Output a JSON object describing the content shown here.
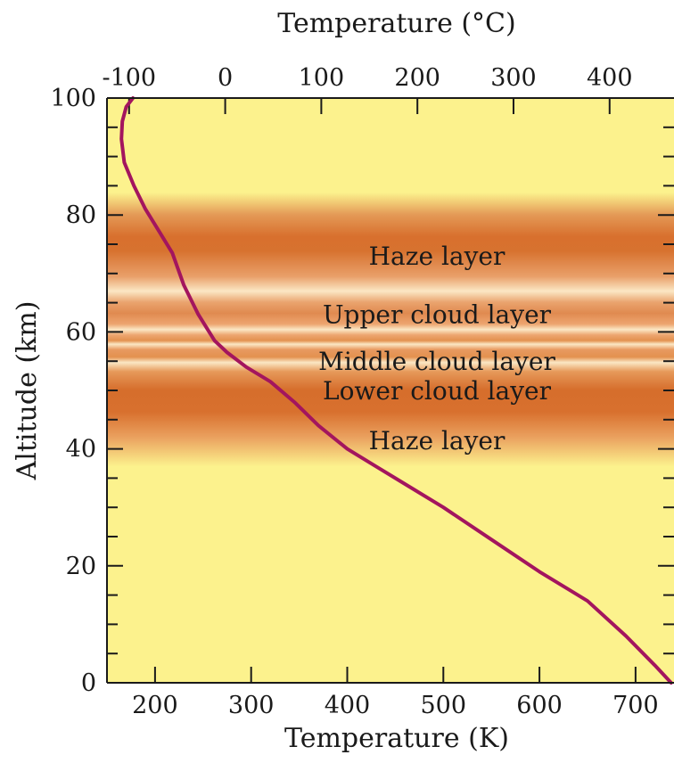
{
  "chart_data": {
    "type": "line",
    "title": "",
    "xlabel": "Temperature (K)",
    "x2label": "Temperature (°C)",
    "ylabel": "Altitude (km)",
    "xlim": [
      150,
      740
    ],
    "ylim": [
      0,
      100
    ],
    "x_ticks": [
      200,
      300,
      400,
      500,
      600,
      700
    ],
    "x2_ticks": [
      -100,
      0,
      100,
      200,
      300,
      400
    ],
    "y_ticks": [
      0,
      20,
      40,
      60,
      80,
      100
    ],
    "grid": false,
    "colors": {
      "line": "#a3155e",
      "background": "#fcf28d",
      "haze_band": "#d8702e",
      "cloud_band": "#e9a06a",
      "cloud_highlight": "#fbe7c4"
    },
    "series": [
      {
        "x": [
          737,
          720,
          690,
          650,
          600,
          550,
          500,
          460,
          430,
          400,
          370,
          345,
          320,
          295,
          275,
          262,
          245,
          230,
          218,
          205,
          190,
          178,
          168,
          165,
          166,
          170,
          177
        ],
        "y": [
          0,
          3,
          8,
          14,
          19,
          24.5,
          30,
          34,
          37,
          40,
          44,
          48,
          51.5,
          54,
          56.5,
          58.5,
          63,
          68,
          73.5,
          77,
          81,
          85,
          89,
          93,
          96,
          98.5,
          100
        ]
      }
    ],
    "layers": [
      {
        "label": "Haze layer",
        "altitude": 73
      },
      {
        "label": "Upper cloud layer",
        "altitude": 63
      },
      {
        "label": "Middle cloud layer",
        "altitude": 55
      },
      {
        "label": "Lower cloud layer",
        "altitude": 50
      },
      {
        "label": "Haze layer",
        "altitude": 41.5
      }
    ]
  }
}
